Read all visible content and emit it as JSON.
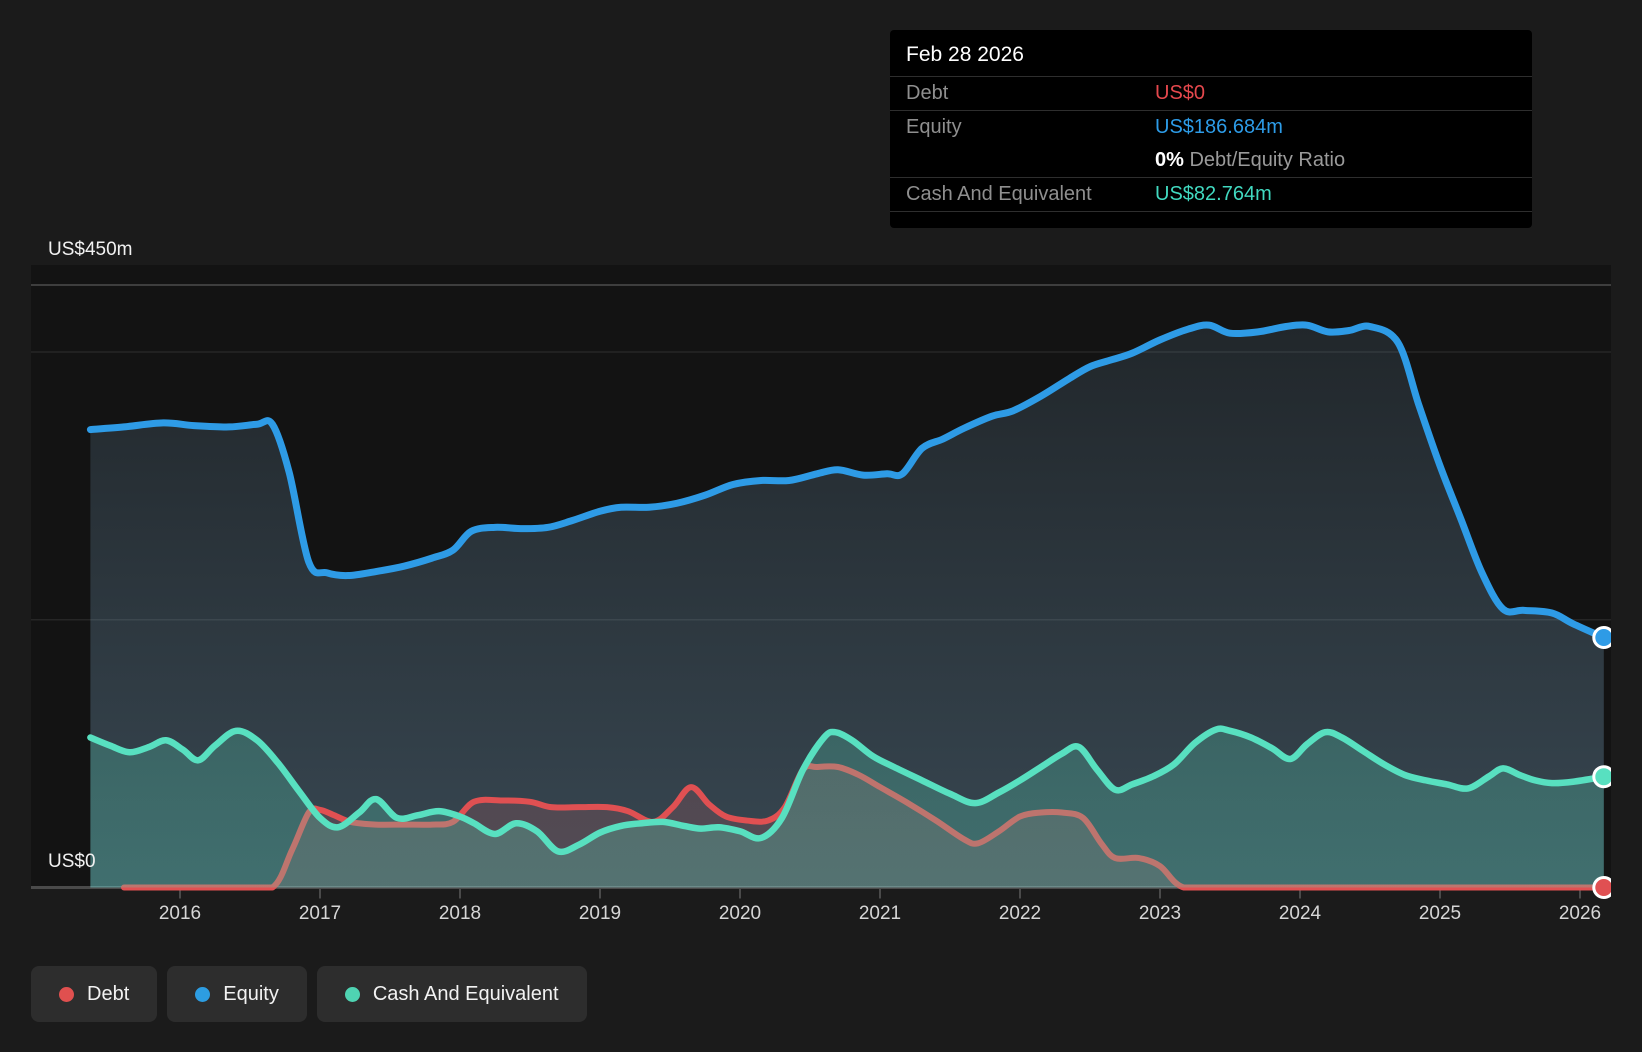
{
  "tooltip": {
    "date": "Feb 28 2026",
    "rows": [
      {
        "label": "Debt",
        "value": "US$0",
        "color": "#e5484d"
      },
      {
        "label": "Equity",
        "value": "US$186.684m",
        "color": "#2d9ce8"
      },
      {
        "label": "",
        "prefix": "0%",
        "value": " Debt/Equity Ratio",
        "color": "#9a9a9a"
      },
      {
        "label": "Cash And Equivalent",
        "value": "US$82.764m",
        "color": "#41d9c0"
      }
    ]
  },
  "y_axis": {
    "top_label": "US$450m",
    "bottom_label": "US$0"
  },
  "legend": {
    "items": [
      {
        "label": "Debt",
        "color": "#e0504f"
      },
      {
        "label": "Equity",
        "color": "#2d9de2"
      },
      {
        "label": "Cash And Equivalent",
        "color": "#4fd3b2"
      }
    ]
  },
  "chart_data": {
    "type": "area",
    "ylabel": "US$ millions",
    "ylim": [
      0,
      450
    ],
    "x_ticks": [
      2016,
      2017,
      2018,
      2019,
      2020,
      2021,
      2022,
      2023,
      2024,
      2025,
      2026
    ],
    "gridlines": [
      {
        "value": 450,
        "strong": true
      },
      {
        "value": 400,
        "strong": false
      },
      {
        "value": 200,
        "strong": false
      }
    ],
    "series": [
      {
        "name": "Equity",
        "color": "#2e9be6",
        "fill_color": "#8fc2e6",
        "fill_opacity": [
          0.1,
          0.3
        ],
        "width": 7,
        "points": [
          [
            2015.36,
            342
          ],
          [
            2015.6,
            344
          ],
          [
            2015.88,
            347
          ],
          [
            2016.1,
            345
          ],
          [
            2016.35,
            344
          ],
          [
            2016.55,
            346
          ],
          [
            2016.66,
            346
          ],
          [
            2016.78,
            310
          ],
          [
            2016.92,
            243
          ],
          [
            2017.05,
            235
          ],
          [
            2017.2,
            233
          ],
          [
            2017.4,
            236
          ],
          [
            2017.6,
            240
          ],
          [
            2017.8,
            246
          ],
          [
            2017.95,
            252
          ],
          [
            2018.08,
            266
          ],
          [
            2018.25,
            269
          ],
          [
            2018.45,
            268
          ],
          [
            2018.63,
            269
          ],
          [
            2018.8,
            274
          ],
          [
            2019.0,
            281
          ],
          [
            2019.15,
            284
          ],
          [
            2019.35,
            284
          ],
          [
            2019.55,
            287
          ],
          [
            2019.75,
            293
          ],
          [
            2019.95,
            301
          ],
          [
            2020.15,
            304
          ],
          [
            2020.35,
            304
          ],
          [
            2020.55,
            309
          ],
          [
            2020.7,
            312
          ],
          [
            2020.88,
            308
          ],
          [
            2021.05,
            309
          ],
          [
            2021.16,
            309
          ],
          [
            2021.3,
            328
          ],
          [
            2021.45,
            335
          ],
          [
            2021.6,
            343
          ],
          [
            2021.8,
            352
          ],
          [
            2021.95,
            356
          ],
          [
            2022.15,
            367
          ],
          [
            2022.35,
            380
          ],
          [
            2022.5,
            389
          ],
          [
            2022.65,
            394
          ],
          [
            2022.8,
            399
          ],
          [
            2023.0,
            409
          ],
          [
            2023.2,
            417
          ],
          [
            2023.35,
            420
          ],
          [
            2023.5,
            414
          ],
          [
            2023.7,
            415
          ],
          [
            2023.9,
            419
          ],
          [
            2024.05,
            420
          ],
          [
            2024.2,
            415
          ],
          [
            2024.35,
            416
          ],
          [
            2024.5,
            419
          ],
          [
            2024.7,
            407
          ],
          [
            2024.85,
            360
          ],
          [
            2025.0,
            315
          ],
          [
            2025.15,
            275
          ],
          [
            2025.3,
            235
          ],
          [
            2025.45,
            208
          ],
          [
            2025.6,
            207
          ],
          [
            2025.8,
            205
          ],
          [
            2025.95,
            197
          ],
          [
            2026.17,
            186.684
          ]
        ]
      },
      {
        "name": "Debt",
        "color": "#e05052",
        "fill_color": "#e2666a",
        "fill_opacity": [
          0.2,
          0.16
        ],
        "width": 6,
        "points": [
          [
            2015.6,
            0
          ],
          [
            2016.0,
            0
          ],
          [
            2016.4,
            0
          ],
          [
            2016.66,
            0
          ],
          [
            2016.8,
            28
          ],
          [
            2016.92,
            56
          ],
          [
            2017.0,
            58
          ],
          [
            2017.1,
            54
          ],
          [
            2017.22,
            49
          ],
          [
            2017.4,
            47
          ],
          [
            2017.6,
            47
          ],
          [
            2017.8,
            47
          ],
          [
            2017.95,
            49
          ],
          [
            2018.1,
            64
          ],
          [
            2018.3,
            65
          ],
          [
            2018.5,
            64
          ],
          [
            2018.65,
            60
          ],
          [
            2018.85,
            60
          ],
          [
            2019.05,
            60
          ],
          [
            2019.2,
            57
          ],
          [
            2019.38,
            49
          ],
          [
            2019.52,
            60
          ],
          [
            2019.65,
            75
          ],
          [
            2019.78,
            62
          ],
          [
            2019.9,
            53
          ],
          [
            2020.05,
            50
          ],
          [
            2020.2,
            50
          ],
          [
            2020.32,
            60
          ],
          [
            2020.45,
            88
          ],
          [
            2020.55,
            90
          ],
          [
            2020.7,
            90
          ],
          [
            2020.85,
            84
          ],
          [
            2021.0,
            75
          ],
          [
            2021.2,
            63
          ],
          [
            2021.4,
            50
          ],
          [
            2021.6,
            36
          ],
          [
            2021.7,
            33
          ],
          [
            2021.85,
            42
          ],
          [
            2022.0,
            53
          ],
          [
            2022.15,
            56
          ],
          [
            2022.3,
            56
          ],
          [
            2022.45,
            52
          ],
          [
            2022.58,
            33
          ],
          [
            2022.68,
            22
          ],
          [
            2022.85,
            22
          ],
          [
            2023.0,
            16
          ],
          [
            2023.17,
            0
          ],
          [
            2023.5,
            0
          ],
          [
            2024.0,
            0
          ],
          [
            2024.5,
            0
          ],
          [
            2025.0,
            0
          ],
          [
            2025.5,
            0
          ],
          [
            2026.17,
            0
          ]
        ]
      },
      {
        "name": "Cash And Equivalent",
        "color": "#58e0c0",
        "fill_color": "#58e0c0",
        "fill_opacity": [
          0.17,
          0.26
        ],
        "width": 6.5,
        "points": [
          [
            2015.36,
            112
          ],
          [
            2015.5,
            106
          ],
          [
            2015.64,
            101
          ],
          [
            2015.78,
            105
          ],
          [
            2015.9,
            110
          ],
          [
            2016.02,
            103
          ],
          [
            2016.13,
            95
          ],
          [
            2016.25,
            106
          ],
          [
            2016.4,
            117
          ],
          [
            2016.55,
            110
          ],
          [
            2016.7,
            93
          ],
          [
            2016.85,
            72
          ],
          [
            2017.0,
            52
          ],
          [
            2017.13,
            45
          ],
          [
            2017.28,
            56
          ],
          [
            2017.4,
            66
          ],
          [
            2017.55,
            52
          ],
          [
            2017.7,
            54
          ],
          [
            2017.85,
            57
          ],
          [
            2018.0,
            53
          ],
          [
            2018.1,
            48
          ],
          [
            2018.25,
            40
          ],
          [
            2018.4,
            48
          ],
          [
            2018.55,
            42
          ],
          [
            2018.7,
            27
          ],
          [
            2018.85,
            32
          ],
          [
            2019.0,
            41
          ],
          [
            2019.15,
            46
          ],
          [
            2019.3,
            48
          ],
          [
            2019.45,
            49
          ],
          [
            2019.6,
            46
          ],
          [
            2019.72,
            44
          ],
          [
            2019.85,
            45
          ],
          [
            2020.0,
            42
          ],
          [
            2020.15,
            37
          ],
          [
            2020.3,
            52
          ],
          [
            2020.45,
            88
          ],
          [
            2020.6,
            112
          ],
          [
            2020.68,
            116
          ],
          [
            2020.8,
            110
          ],
          [
            2020.95,
            98
          ],
          [
            2021.1,
            90
          ],
          [
            2021.3,
            80
          ],
          [
            2021.5,
            70
          ],
          [
            2021.68,
            63
          ],
          [
            2021.85,
            71
          ],
          [
            2022.0,
            80
          ],
          [
            2022.15,
            90
          ],
          [
            2022.3,
            100
          ],
          [
            2022.42,
            105
          ],
          [
            2022.55,
            88
          ],
          [
            2022.68,
            73
          ],
          [
            2022.8,
            77
          ],
          [
            2022.95,
            83
          ],
          [
            2023.1,
            92
          ],
          [
            2023.25,
            108
          ],
          [
            2023.4,
            118
          ],
          [
            2023.5,
            117
          ],
          [
            2023.65,
            112
          ],
          [
            2023.8,
            104
          ],
          [
            2023.93,
            96
          ],
          [
            2024.05,
            107
          ],
          [
            2024.18,
            116
          ],
          [
            2024.3,
            112
          ],
          [
            2024.45,
            102
          ],
          [
            2024.6,
            92
          ],
          [
            2024.75,
            84
          ],
          [
            2024.9,
            80
          ],
          [
            2025.05,
            77
          ],
          [
            2025.2,
            74
          ],
          [
            2025.35,
            83
          ],
          [
            2025.45,
            89
          ],
          [
            2025.57,
            84
          ],
          [
            2025.68,
            80
          ],
          [
            2025.8,
            78
          ],
          [
            2025.95,
            79
          ],
          [
            2026.17,
            82.764
          ]
        ]
      }
    ]
  }
}
